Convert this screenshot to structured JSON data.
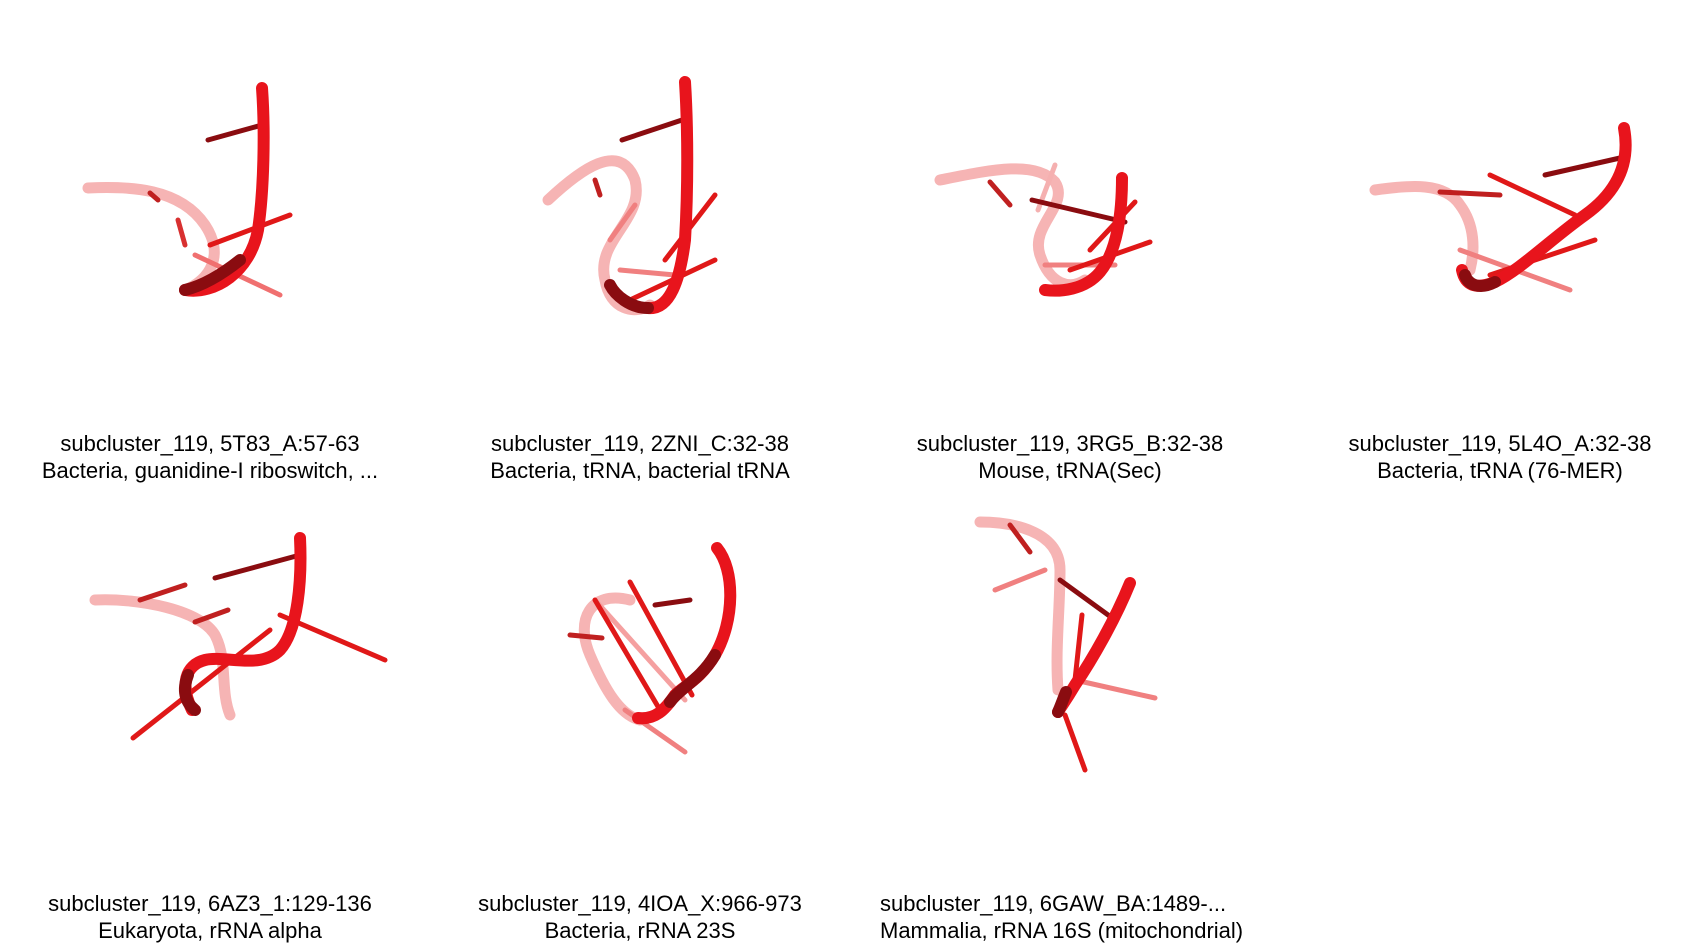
{
  "panels": [
    {
      "id": "5T83_A",
      "title": "subcluster_119, 5T83_A:57-63",
      "subtitle": "Bacteria, guanidine-I riboswitch, ..."
    },
    {
      "id": "2ZNI_C",
      "title": "subcluster_119, 2ZNI_C:32-38",
      "subtitle": "Bacteria, tRNA, bacterial tRNA"
    },
    {
      "id": "3RG5_B",
      "title": "subcluster_119, 3RG5_B:32-38",
      "subtitle": "Mouse, tRNA(Sec)"
    },
    {
      "id": "5L4O_A",
      "title": "subcluster_119, 5L4O_A:32-38",
      "subtitle": "Bacteria, tRNA (76-MER)"
    },
    {
      "id": "6AZ3_1",
      "title": "subcluster_119, 6AZ3_1:129-136",
      "subtitle": "Eukaryota, rRNA alpha"
    },
    {
      "id": "4IOA_X",
      "title": "subcluster_119, 4IOA_X:966-973",
      "subtitle": "Bacteria, rRNA 23S"
    },
    {
      "id": "6GAW_BA",
      "title": "subcluster_119, 6GAW_BA:1489-...",
      "subtitle": "Mammalia, rRNA 16S (mitochondrial)"
    }
  ],
  "colors": {
    "strand": "#e8141c",
    "strand_dark": "#8a0c10",
    "strand_light": "#f2a0a0"
  }
}
